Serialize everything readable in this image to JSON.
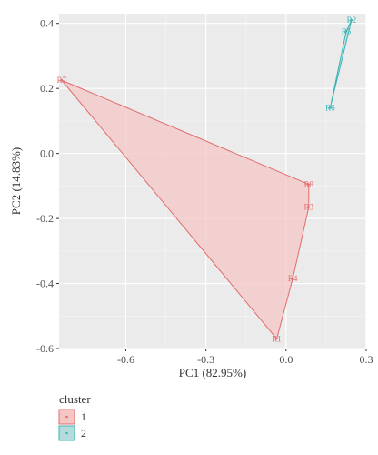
{
  "chart_data": {
    "type": "scatter",
    "xlabel": "PC1 (82.95%)",
    "ylabel": "PC2 (14.83%)",
    "xlim": [
      -0.85,
      0.3
    ],
    "ylim": [
      -0.6,
      0.43
    ],
    "xticks": [
      -0.6,
      -0.3,
      0.0,
      0.3
    ],
    "xtick_labels": [
      "-0.6",
      "-0.3",
      "0.0",
      "0.3"
    ],
    "yticks": [
      -0.6,
      -0.4,
      -0.2,
      0.0,
      0.2,
      0.4
    ],
    "ytick_labels": [
      "-0.6",
      "-0.4",
      "-0.2",
      "0.0",
      "0.2",
      "0.4"
    ],
    "grid": true,
    "series": [
      {
        "name": "1",
        "color": "#e06c6c",
        "fill": "#f4c7c5",
        "points": [
          {
            "label": "R7",
            "x": -0.84,
            "y": 0.225
          },
          {
            "label": "R8",
            "x": 0.085,
            "y": -0.095
          },
          {
            "label": "R3",
            "x": 0.085,
            "y": -0.165
          },
          {
            "label": "R4",
            "x": 0.025,
            "y": -0.385
          },
          {
            "label": "R1",
            "x": -0.035,
            "y": -0.57
          }
        ],
        "hull": [
          "R7",
          "R8",
          "R3",
          "R4",
          "R1"
        ]
      },
      {
        "name": "2",
        "color": "#3cb4b4",
        "fill": "#b5dcdc",
        "points": [
          {
            "label": "R2",
            "x": 0.245,
            "y": 0.41
          },
          {
            "label": "R5",
            "x": 0.225,
            "y": 0.375
          },
          {
            "label": "R6",
            "x": 0.165,
            "y": 0.14
          }
        ],
        "hull": [
          "R2",
          "R5",
          "R6"
        ]
      }
    ],
    "legend": {
      "title": "cluster",
      "placement": "bottom-left",
      "entries": [
        "1",
        "2"
      ]
    }
  }
}
